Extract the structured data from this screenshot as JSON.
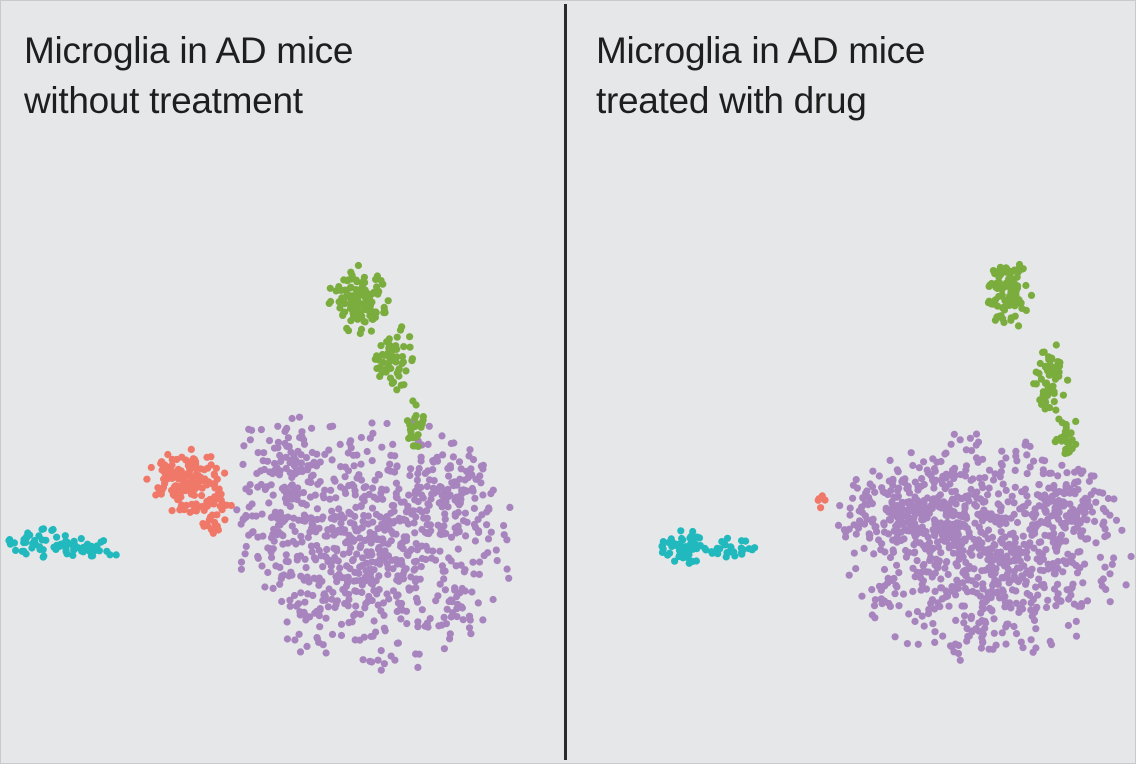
{
  "chart_data": [
    {
      "type": "scatter",
      "title": [
        "Microglia in AD mice",
        "without treatment"
      ],
      "xlabel": "",
      "ylabel": "",
      "axes_visible": false,
      "grid": false,
      "legend": "none",
      "xlim": [
        0,
        100
      ],
      "ylim": [
        0,
        100
      ],
      "series": [
        {
          "name": "purple",
          "color": "#a784bd",
          "clusters": [
            {
              "cx": 72,
              "cy": 34,
              "rx": 24,
              "ry": 22,
              "n": 700
            },
            {
              "cx": 54,
              "cy": 45,
              "rx": 9,
              "ry": 14,
              "n": 120
            },
            {
              "cx": 88,
              "cy": 44,
              "rx": 6,
              "ry": 10,
              "n": 60
            }
          ]
        },
        {
          "name": "salmon",
          "color": "#f07868",
          "clusters": [
            {
              "cx": 36,
              "cy": 46,
              "rx": 7,
              "ry": 6,
              "n": 140
            },
            {
              "cx": 41,
              "cy": 40,
              "rx": 4,
              "ry": 4,
              "n": 30
            }
          ]
        },
        {
          "name": "green",
          "color": "#7aad3d",
          "clusters": [
            {
              "cx": 69,
              "cy": 81,
              "rx": 5,
              "ry": 6,
              "n": 110
            },
            {
              "cx": 76,
              "cy": 69,
              "rx": 4,
              "ry": 6,
              "n": 55
            },
            {
              "cx": 80,
              "cy": 56,
              "rx": 2,
              "ry": 5,
              "n": 22
            }
          ]
        },
        {
          "name": "teal",
          "color": "#21b9bd",
          "clusters": [
            {
              "cx": 7,
              "cy": 34,
              "rx": 6,
              "ry": 3,
              "n": 40
            },
            {
              "cx": 17,
              "cy": 33,
              "rx": 6,
              "ry": 2,
              "n": 30
            }
          ]
        }
      ]
    },
    {
      "type": "scatter",
      "title": [
        "Microglia in AD mice",
        "treated with drug"
      ],
      "xlabel": "",
      "ylabel": "",
      "axes_visible": false,
      "grid": false,
      "legend": "none",
      "xlim": [
        0,
        100
      ],
      "ylim": [
        0,
        100
      ],
      "series": [
        {
          "name": "purple",
          "color": "#a784bd",
          "clusters": [
            {
              "cx": 73,
              "cy": 33,
              "rx": 25,
              "ry": 20,
              "n": 760
            },
            {
              "cx": 57,
              "cy": 40,
              "rx": 13,
              "ry": 8,
              "n": 200
            },
            {
              "cx": 88,
              "cy": 41,
              "rx": 8,
              "ry": 8,
              "n": 80
            }
          ]
        },
        {
          "name": "salmon",
          "color": "#f07868",
          "clusters": [
            {
              "cx": 40,
              "cy": 42,
              "rx": 3,
              "ry": 2,
              "n": 5
            }
          ]
        },
        {
          "name": "green",
          "color": "#7aad3d",
          "clusters": [
            {
              "cx": 77,
              "cy": 82,
              "rx": 4,
              "ry": 6,
              "n": 100
            },
            {
              "cx": 85,
              "cy": 66,
              "rx": 3,
              "ry": 6,
              "n": 60
            },
            {
              "cx": 88,
              "cy": 55,
              "rx": 2,
              "ry": 4,
              "n": 25
            }
          ]
        },
        {
          "name": "teal",
          "color": "#21b9bd",
          "clusters": [
            {
              "cx": 14,
              "cy": 33,
              "rx": 4,
              "ry": 3,
              "n": 60
            },
            {
              "cx": 23,
              "cy": 33,
              "rx": 5,
              "ry": 2,
              "n": 25
            }
          ]
        }
      ]
    }
  ]
}
